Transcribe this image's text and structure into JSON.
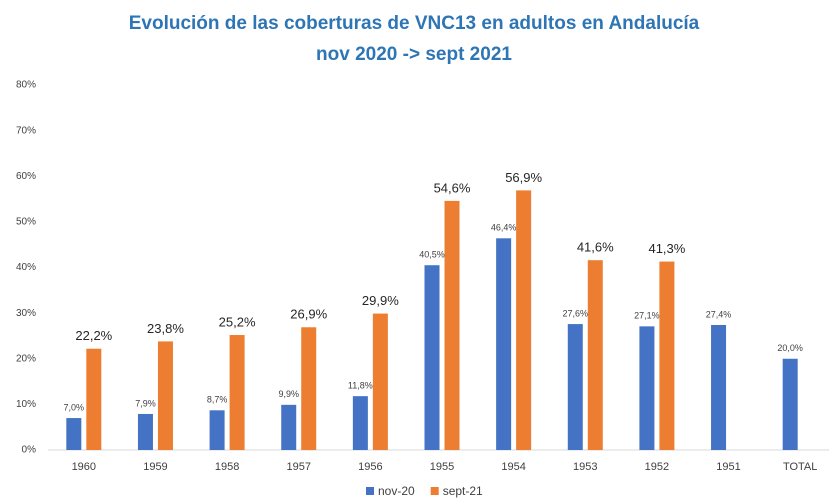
{
  "chart_data": {
    "type": "bar",
    "title": "Evolución de las coberturas de VNC13 en adultos en Andalucía",
    "subtitle": "nov 2020 -> sept 2021",
    "categories": [
      "1960",
      "1959",
      "1958",
      "1957",
      "1956",
      "1955",
      "1954",
      "1953",
      "1952",
      "1951",
      "TOTAL"
    ],
    "series": [
      {
        "name": "nov-20",
        "color": "#4472c4",
        "values": [
          7.0,
          7.9,
          8.7,
          9.9,
          11.8,
          40.5,
          46.4,
          27.6,
          27.1,
          27.4,
          20.0
        ],
        "value_labels": [
          "7,0%",
          "7,9%",
          "8,7%",
          "9,9%",
          "11,8%",
          "40,5%",
          "46,4%",
          "27,6%",
          "27,1%",
          "27,4%",
          "20,0%"
        ]
      },
      {
        "name": "sept-21",
        "color": "#ed7d31",
        "values": [
          22.2,
          23.8,
          25.2,
          26.9,
          29.9,
          54.6,
          56.9,
          41.6,
          41.3,
          null,
          null
        ],
        "value_labels": [
          "22,2%",
          "23,8%",
          "25,2%",
          "26,9%",
          "29,9%",
          "54,6%",
          "56,9%",
          "41,6%",
          "41,3%",
          null,
          null
        ]
      }
    ],
    "ylim": [
      0,
      80
    ],
    "yticks": [
      {
        "value": 0,
        "label": "0%"
      },
      {
        "value": 10,
        "label": "10%"
      },
      {
        "value": 20,
        "label": "20%"
      },
      {
        "value": 30,
        "label": "30%"
      },
      {
        "value": 40,
        "label": "40%"
      },
      {
        "value": 50,
        "label": "50%"
      },
      {
        "value": 60,
        "label": "60%"
      },
      {
        "value": 70,
        "label": "70%"
      },
      {
        "value": 80,
        "label": "80%"
      }
    ],
    "grid": false,
    "legend": "bottom"
  }
}
